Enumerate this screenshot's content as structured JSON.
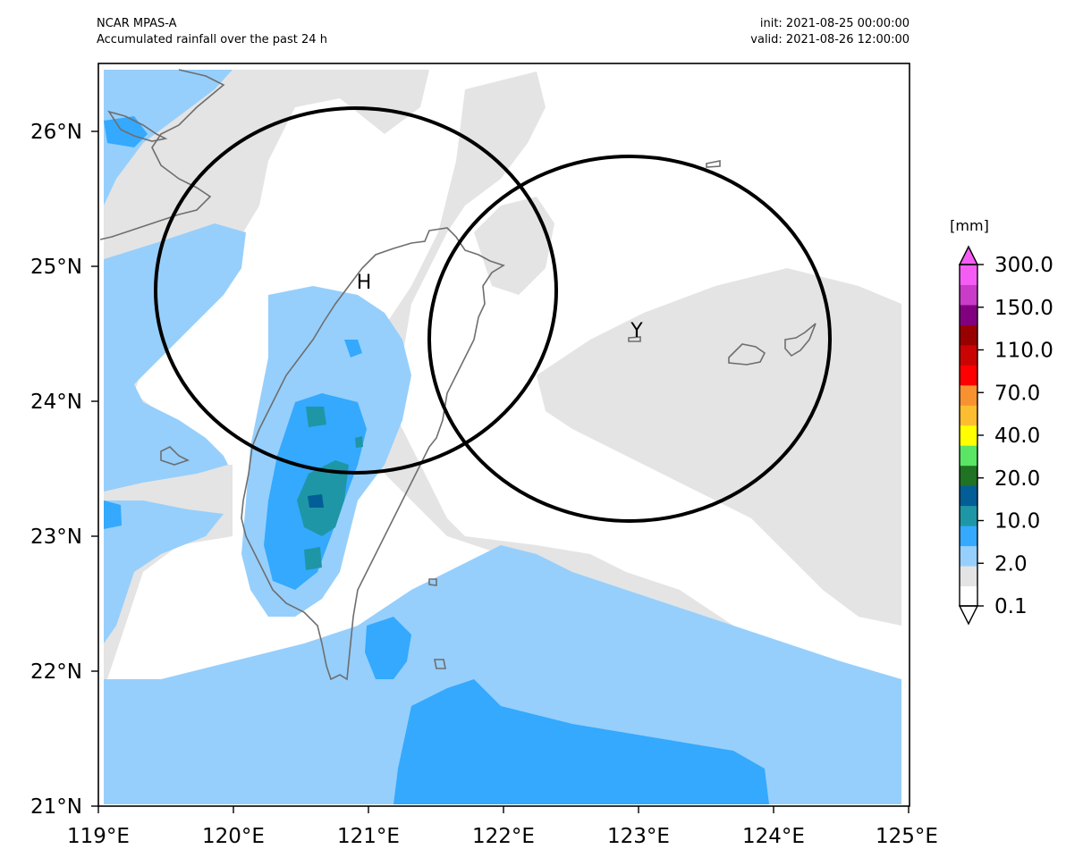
{
  "header": {
    "model": "NCAR MPAS-A",
    "title": "Accumulated rainfall over the past 24 h",
    "init": "init: 2021-08-25 00:00:00",
    "valid": "valid: 2021-08-26 12:00:00"
  },
  "map": {
    "lon_range": [
      119,
      125
    ],
    "lat_range": [
      21,
      26.5
    ],
    "lon_ticks": [
      "119°E",
      "120°E",
      "121°E",
      "122°E",
      "123°E",
      "124°E",
      "125°E"
    ],
    "lat_ticks": [
      "21°N",
      "22°N",
      "23°N",
      "24°N",
      "25°N",
      "26°N"
    ],
    "markers": [
      {
        "label": "H",
        "lon": 121.0,
        "lat": 24.85
      },
      {
        "label": "Y",
        "lon": 122.95,
        "lat": 24.5
      }
    ],
    "circles": [
      {
        "center_lon": 120.9,
        "center_lat": 24.85
      },
      {
        "center_lon": 122.95,
        "center_lat": 24.45
      }
    ]
  },
  "colorbar": {
    "unit": "[mm]",
    "labels": [
      "0.1",
      "2.0",
      "10.0",
      "20.0",
      "40.0",
      "70.0",
      "110.0",
      "150.0",
      "300.0"
    ],
    "colors": [
      "#ffffff",
      "#e4e4e4",
      "#96cffc",
      "#34a9fe",
      "#1e96a6",
      "#035e97",
      "#207323",
      "#5ae664",
      "#ffff00",
      "#fdbd30",
      "#f89231",
      "#fe0002",
      "#ca0303",
      "#990000",
      "#820080",
      "#c83cc8",
      "#f55cf5"
    ]
  },
  "colors": {
    "land_outline": "#6e6e6e",
    "circle": "#000000"
  }
}
